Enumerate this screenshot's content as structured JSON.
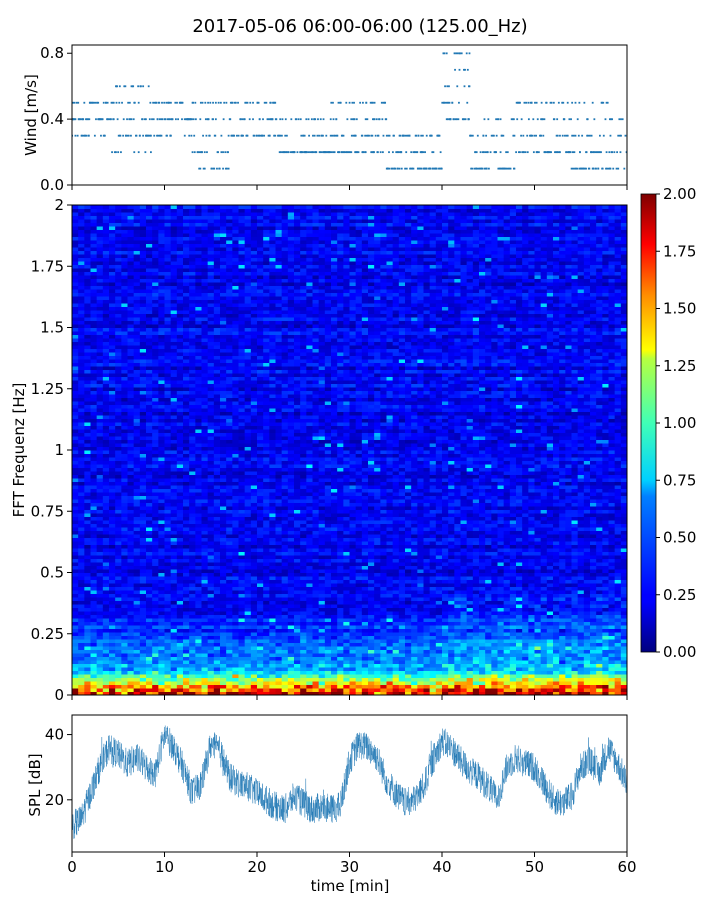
{
  "figure": {
    "title": "2017-05-06 06:00-06:00 (125.00_Hz)"
  },
  "chart_data": [
    {
      "id": "wind",
      "type": "scatter",
      "title": "",
      "xlabel": "",
      "ylabel": "Wind [m/s]",
      "xlim": [
        0,
        60
      ],
      "ylim": [
        0.0,
        0.85
      ],
      "yticks": [
        0.0,
        0.4,
        0.8
      ],
      "ytick_labels": [
        "0.0",
        "0.4",
        "0.8"
      ],
      "x_unit": "min",
      "series": [
        {
          "color": "#1f77b4",
          "description": "wind speed samples quantized to 0.1 m/s steps",
          "level_segments": [
            {
              "x_start": 0,
              "x_end": 4,
              "levels": [
                0.4,
                0.5,
                0.3
              ]
            },
            {
              "x_start": 4,
              "x_end": 9,
              "levels": [
                0.3,
                0.4,
                0.5,
                0.6,
                0.2
              ]
            },
            {
              "x_start": 9,
              "x_end": 13,
              "levels": [
                0.4,
                0.5,
                0.3
              ]
            },
            {
              "x_start": 13,
              "x_end": 17,
              "levels": [
                0.2,
                0.3,
                0.4,
                0.5,
                0.1
              ]
            },
            {
              "x_start": 17,
              "x_end": 22,
              "levels": [
                0.3,
                0.4,
                0.5
              ]
            },
            {
              "x_start": 22,
              "x_end": 28,
              "levels": [
                0.2,
                0.3,
                0.4
              ]
            },
            {
              "x_start": 28,
              "x_end": 34,
              "levels": [
                0.2,
                0.3,
                0.4,
                0.5
              ]
            },
            {
              "x_start": 34,
              "x_end": 40,
              "levels": [
                0.1,
                0.2,
                0.3
              ]
            },
            {
              "x_start": 40,
              "x_end": 43,
              "levels": [
                0.4,
                0.5,
                0.6,
                0.7,
                0.8
              ]
            },
            {
              "x_start": 43,
              "x_end": 48,
              "levels": [
                0.1,
                0.2,
                0.3,
                0.4
              ]
            },
            {
              "x_start": 48,
              "x_end": 54,
              "levels": [
                0.2,
                0.3,
                0.4,
                0.5
              ]
            },
            {
              "x_start": 54,
              "x_end": 60,
              "levels": [
                0.1,
                0.2,
                0.3,
                0.4,
                0.5
              ]
            }
          ]
        }
      ]
    },
    {
      "id": "spectrogram",
      "type": "heatmap",
      "title": "",
      "xlabel": "",
      "ylabel": "FFT Frequenz [Hz]",
      "xlim": [
        0,
        60
      ],
      "ylim": [
        0,
        2
      ],
      "yticks": [
        0,
        0.25,
        0.5,
        0.75,
        1,
        1.25,
        1.5,
        1.75,
        2
      ],
      "ytick_labels": [
        "0",
        "0.25",
        "0.5",
        "0.75",
        "1",
        "1.25",
        "1.5",
        "1.75",
        "2"
      ],
      "colormap": "jet",
      "clim": [
        0.0,
        2.0
      ],
      "colorbar_ticks": [
        "0.00",
        "0.25",
        "0.50",
        "0.75",
        "1.00",
        "1.25",
        "1.50",
        "1.75",
        "2.00"
      ],
      "description": "power mostly 0.1-0.4 across all frequencies; strong values (1.0-2.0+) below ~0.1 Hz, moderate values (0.5-1.0) around 0.1-0.35 Hz, brighter streaks after 40 min"
    },
    {
      "id": "spl",
      "type": "line",
      "title": "",
      "xlabel": "time [min]",
      "ylabel": "SPL [dB]",
      "xlim": [
        0,
        60
      ],
      "ylim": [
        4,
        46
      ],
      "yticks": [
        20,
        40
      ],
      "ytick_labels": [
        "20",
        "40"
      ],
      "xticks": [
        0,
        10,
        20,
        30,
        40,
        50,
        60
      ],
      "xtick_labels": [
        "0",
        "10",
        "20",
        "30",
        "40",
        "50",
        "60"
      ],
      "series": [
        {
          "color": "#1f77b4",
          "x": [
            0,
            1,
            2,
            3,
            4,
            5,
            6,
            7,
            8,
            9,
            10,
            11,
            12,
            13,
            14,
            15,
            16,
            17,
            18,
            19,
            20,
            21,
            22,
            23,
            24,
            25,
            26,
            27,
            28,
            29,
            30,
            31,
            32,
            33,
            34,
            35,
            36,
            37,
            38,
            39,
            40,
            41,
            42,
            43,
            44,
            45,
            46,
            47,
            48,
            49,
            50,
            51,
            52,
            53,
            54,
            55,
            56,
            57,
            58,
            59,
            60
          ],
          "y": [
            12,
            14,
            22,
            30,
            36,
            34,
            31,
            33,
            30,
            28,
            40,
            36,
            30,
            22,
            25,
            37,
            35,
            27,
            25,
            24,
            22,
            20,
            18,
            17,
            21,
            19,
            17,
            18,
            17,
            18,
            32,
            37,
            36,
            33,
            26,
            22,
            19,
            20,
            24,
            32,
            38,
            36,
            32,
            29,
            27,
            24,
            20,
            30,
            33,
            31,
            30,
            25,
            20,
            19,
            21,
            30,
            32,
            28,
            36,
            31,
            25
          ]
        }
      ]
    }
  ]
}
